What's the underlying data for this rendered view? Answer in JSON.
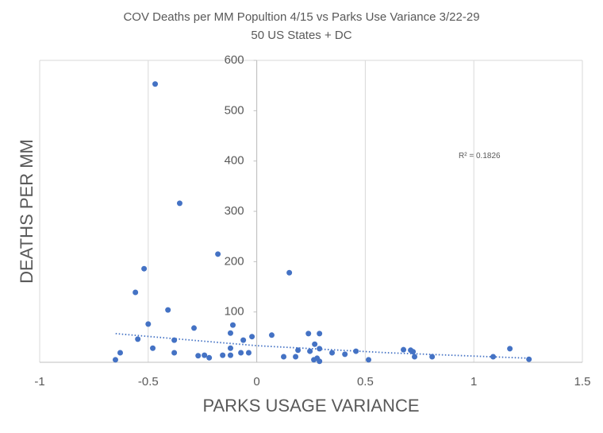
{
  "chart_data": {
    "type": "scatter",
    "title": "COV Deaths per MM Popultion 4/15 vs Parks Use Variance 3/22-29",
    "subtitle": "50 US States + DC",
    "x_label": "PARKS USAGE VARIANCE",
    "y_label": "DEATHS PER MM",
    "color": "#4472c4",
    "grid": "x",
    "xlim": [
      -1,
      1.5
    ],
    "xticks": [
      -1,
      -0.5,
      0,
      0.5,
      1,
      1.5
    ],
    "ylim": [
      0,
      600
    ],
    "yticks": [
      100,
      200,
      300,
      400,
      500,
      600
    ],
    "x": [
      -0.468,
      -0.355,
      -0.179,
      0.15,
      -0.519,
      -0.559,
      -0.409,
      -0.5,
      -0.289,
      -0.11,
      -0.121,
      -0.548,
      -0.38,
      0.069,
      -0.022,
      -0.062,
      0.238,
      0.289,
      -0.479,
      -0.121,
      -0.629,
      -0.38,
      -0.073,
      -0.037,
      0.19,
      0.245,
      0.267,
      0.289,
      0.347,
      0.406,
      0.457,
      0.676,
      0.709,
      0.72,
      0.727,
      0.808,
      1.089,
      1.166,
      1.254,
      -0.651,
      -0.27,
      -0.241,
      -0.219,
      -0.157,
      -0.121,
      0.124,
      0.179,
      0.263,
      0.278,
      0.289,
      0.515
    ],
    "values": [
      553,
      316,
      215,
      178,
      186,
      139,
      104,
      76,
      68,
      74,
      58,
      46,
      44,
      54,
      51,
      44,
      57,
      57,
      28,
      28,
      19,
      19,
      19,
      19,
      24,
      22,
      36,
      27,
      19,
      16,
      22,
      25,
      24,
      21,
      11,
      11,
      11,
      27,
      6,
      5,
      13,
      14,
      9,
      14,
      14,
      11,
      11,
      5,
      8,
      2,
      5
    ],
    "trendline": {
      "label": "R² = 0.1826",
      "label_x": 0.93,
      "label_y": 410,
      "x": [
        -0.65,
        -0.3,
        0,
        0.3,
        0.6,
        0.9,
        1.26
      ],
      "values": [
        57,
        44,
        33,
        26,
        19,
        14,
        8
      ]
    }
  }
}
